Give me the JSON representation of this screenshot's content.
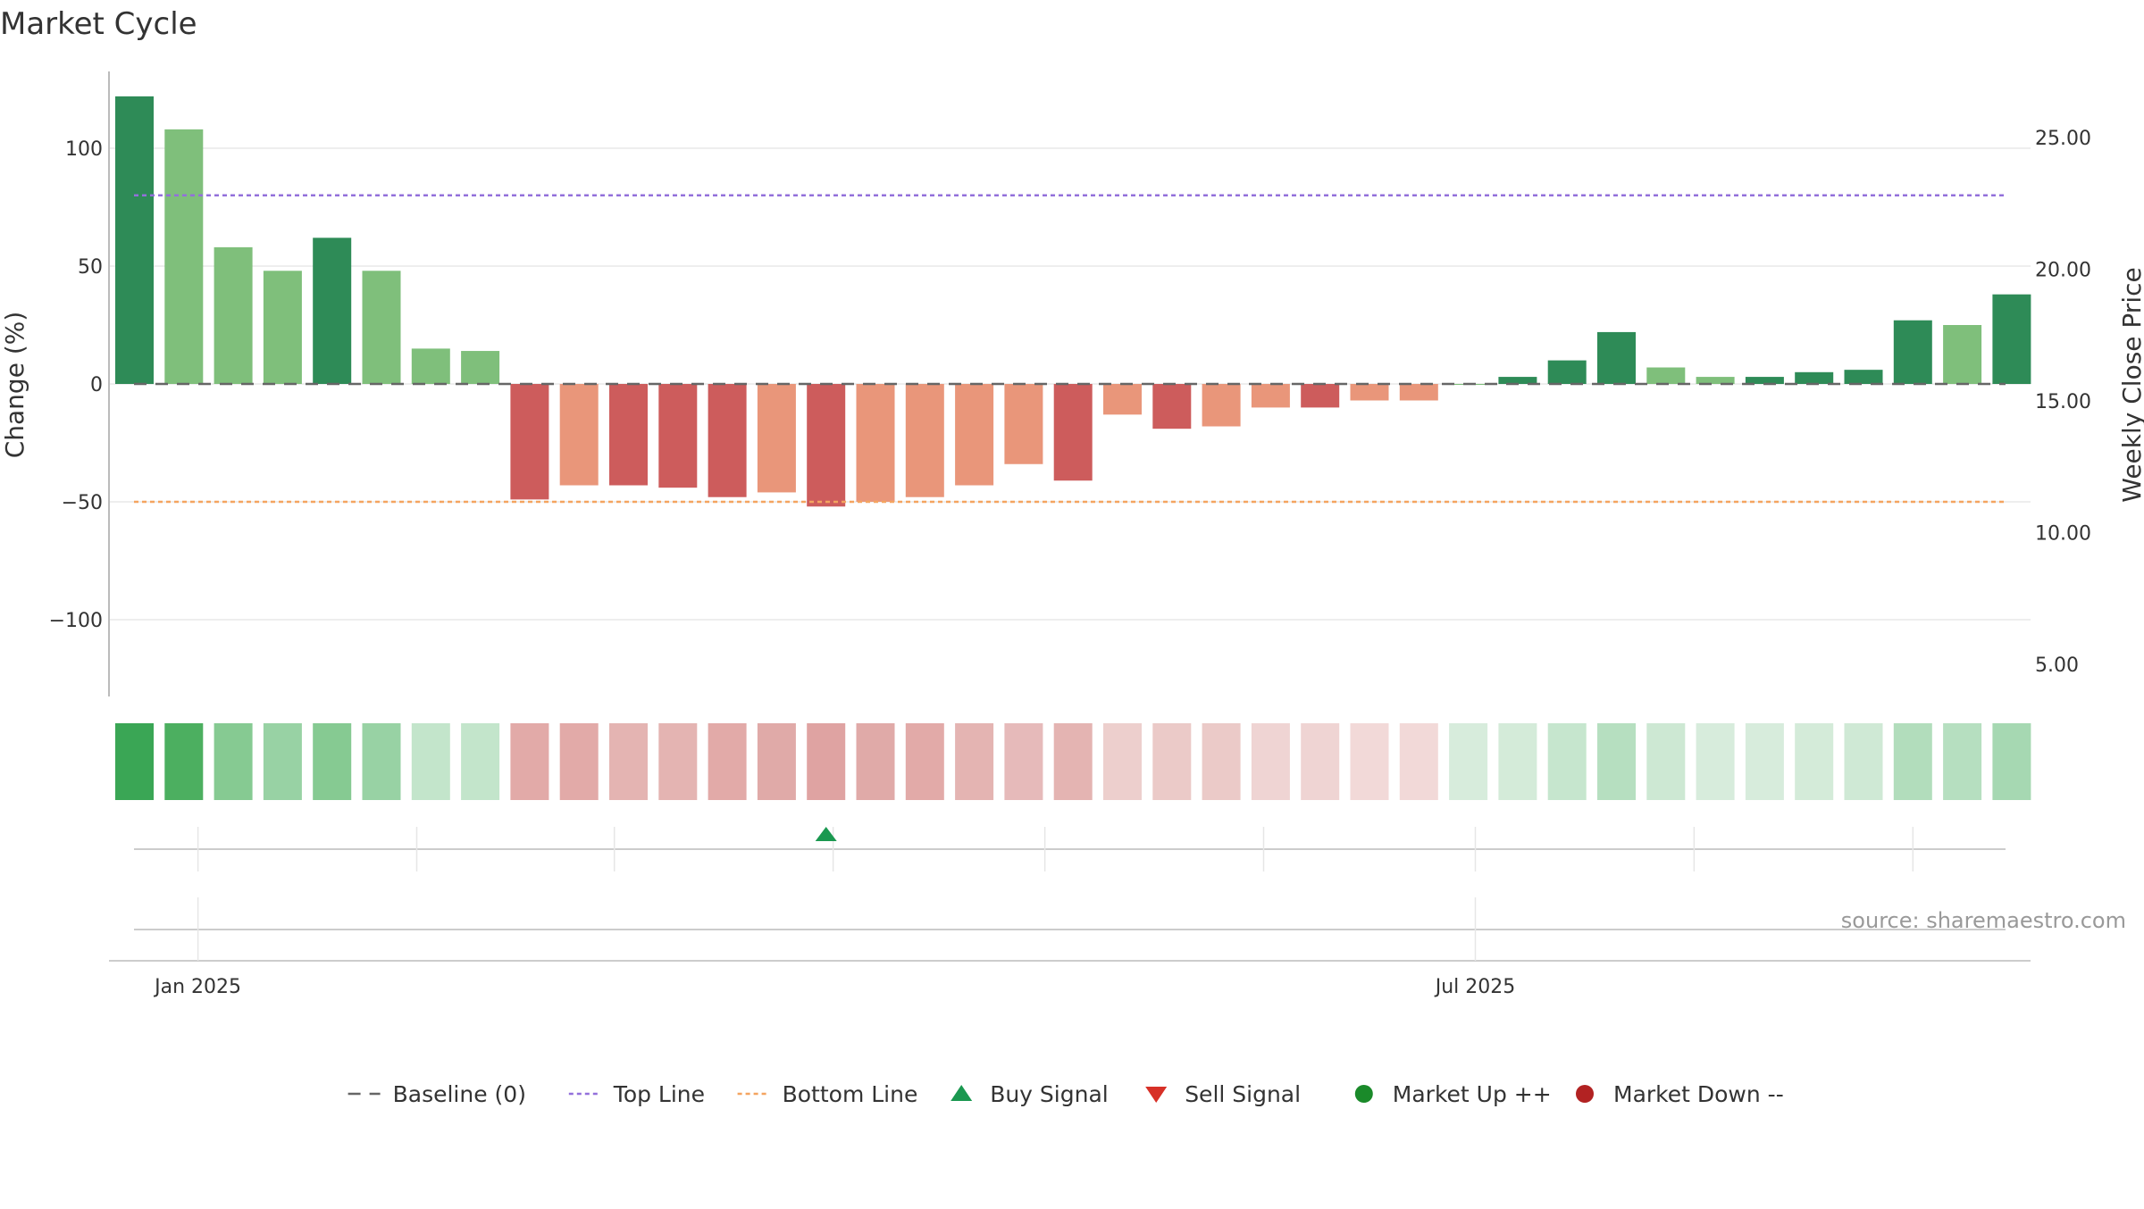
{
  "chart_data": {
    "type": "bar",
    "title": "Market Cycle",
    "ylabel": "Change (%)",
    "y2label": "Weekly Close Price",
    "ylim": [
      -133,
      133
    ],
    "yticks": [
      100,
      50,
      0,
      -50,
      -100
    ],
    "ytick_labels": [
      "100",
      "50",
      "0",
      "−50",
      "−100"
    ],
    "y2lim": [
      3.78,
      27.5
    ],
    "y2ticks": [
      25,
      20,
      15,
      10,
      5
    ],
    "y2tick_labels": [
      "25.00",
      "20.00",
      "15.00",
      "10.00",
      "5.00"
    ],
    "x_start": "2024-12-23",
    "xticks": [
      {
        "date": "2025-01-01",
        "label": "Jan 2025"
      },
      {
        "date": "2025-07-01",
        "label": "Jul 2025"
      }
    ],
    "top_line": 80,
    "bottom_line": -50,
    "baseline": 0,
    "values": [
      122,
      108,
      58,
      48,
      62,
      48,
      15,
      14,
      -49,
      -43,
      -43,
      -44,
      -48,
      -46,
      -52,
      -50,
      -48,
      -43,
      -34,
      -41,
      -13,
      -19,
      -18,
      -10,
      -10,
      -7,
      -7,
      0,
      3,
      10,
      22,
      7,
      3,
      3,
      5,
      6,
      27,
      25,
      38
    ],
    "bar_colors": [
      "#2e8b57",
      "#7fbf7b",
      "#7fbf7b",
      "#7fbf7b",
      "#2e8b57",
      "#7fbf7b",
      "#7fbf7b",
      "#7fbf7b",
      "#cd5c5c",
      "#e9967a",
      "#cd5c5c",
      "#cd5c5c",
      "#cd5c5c",
      "#e9967a",
      "#cd5c5c",
      "#e9967a",
      "#e9967a",
      "#e9967a",
      "#e9967a",
      "#cd5c5c",
      "#e9967a",
      "#cd5c5c",
      "#e9967a",
      "#e9967a",
      "#cd5c5c",
      "#e9967a",
      "#e9967a",
      "#7fbf7b",
      "#2e8b57",
      "#2e8b57",
      "#2e8b57",
      "#7fbf7b",
      "#7fbf7b",
      "#2e8b57",
      "#2e8b57",
      "#2e8b57",
      "#2e8b57",
      "#7fbf7b",
      "#2e8b57"
    ],
    "heat_colors": [
      "#3aa655",
      "#4caf60",
      "#86ca92",
      "#98d2a4",
      "#86ca92",
      "#98d2a4",
      "#c3e5cb",
      "#c3e5cb",
      "#e2aaa8",
      "#e2aaa8",
      "#e4b4b2",
      "#e4b4b2",
      "#e2aaa8",
      "#e0aaa8",
      "#dfa3a2",
      "#e0aaa8",
      "#e2aaa8",
      "#e4b4b2",
      "#e6baba",
      "#e4b4b2",
      "#edcfcd",
      "#ebcac8",
      "#ebcac8",
      "#efd4d3",
      "#efd4d3",
      "#f2d9d8",
      "#f2d9d8",
      "#d7ecdc",
      "#d4ebd9",
      "#c6e6ce",
      "#b6dfc0",
      "#cde8d3",
      "#d7ecdc",
      "#d7ecdc",
      "#d4ebd9",
      "#cfe9d5",
      "#b2ddbc",
      "#b6dfc0",
      "#a6d8b2"
    ],
    "signals": [
      {
        "index": 14,
        "type": "buy"
      }
    ],
    "legend": [
      {
        "label": "Baseline (0)",
        "symbol": "dash",
        "color": "#666666"
      },
      {
        "label": "Top Line",
        "symbol": "dotted",
        "color": "#9370db"
      },
      {
        "label": "Bottom Line",
        "symbol": "dotted",
        "color": "#f4a460"
      },
      {
        "label": "Buy Signal",
        "symbol": "triangle-up",
        "color": "#1a9850"
      },
      {
        "label": "Sell Signal",
        "symbol": "triangle-down",
        "color": "#d73027"
      },
      {
        "label": "Market Up ++",
        "symbol": "circle",
        "color": "#1a8a2a"
      },
      {
        "label": "Market Down --",
        "symbol": "circle",
        "color": "#b22222"
      }
    ],
    "grid": true,
    "legend_position": "bottom-center",
    "source": "source: sharemaestro.com"
  }
}
